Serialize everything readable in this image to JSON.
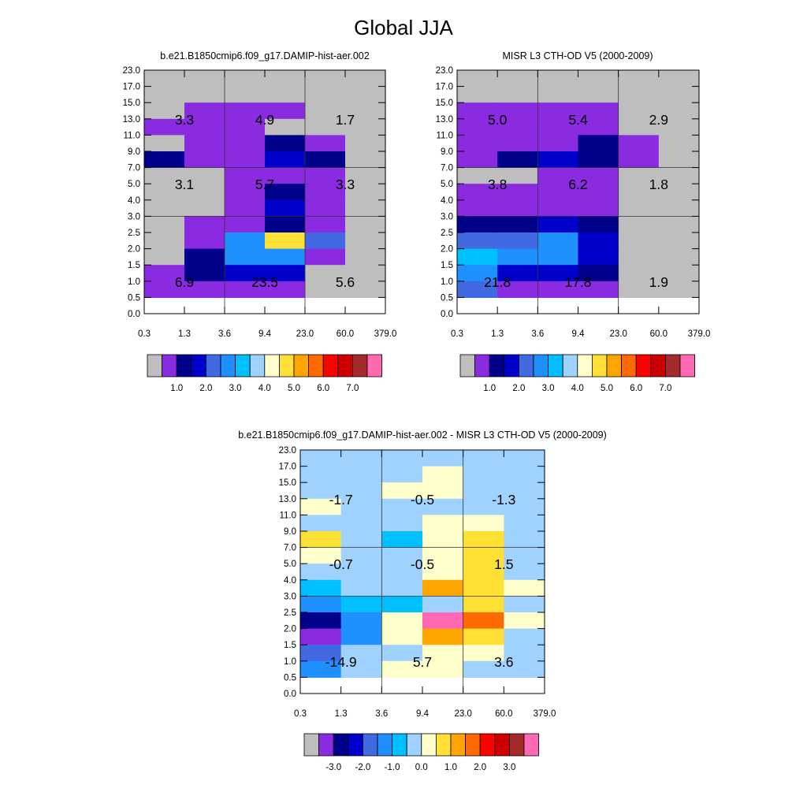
{
  "page": {
    "title": "Global JJA"
  },
  "colors": {
    "low": "#bebebe",
    "high": "#ff69b4",
    "palette": [
      "#8a2be2",
      "#00008b",
      "#0000cd",
      "#4169e1",
      "#1e90ff",
      "#00bfff",
      "#a0d2ff",
      "#ffffcc",
      "#ffe135",
      "#ffa500",
      "#ff6a00",
      "#ff0000",
      "#cc0000",
      "#a52a2a"
    ]
  },
  "chart_data": [
    {
      "type": "heatmap",
      "title": "b.e21.B1850cmip6.f09_g17.DAMIP-hist-aer.002",
      "x_ticks": [
        "0.3",
        "1.3",
        "3.6",
        "9.4",
        "23.0",
        "60.0",
        "379.0"
      ],
      "y_ticks": [
        "0.0",
        "0.5",
        "1.0",
        "1.5",
        "2.0",
        "2.5",
        "3.0",
        "4.0",
        "5.0",
        "7.0",
        "9.0",
        "11.0",
        "13.0",
        "15.0",
        "17.0",
        "23.0"
      ],
      "colorbar_labels": [
        "1.0",
        "2.0",
        "3.0",
        "4.0",
        "5.0",
        "6.0",
        "7.0"
      ],
      "levels": [
        0.5,
        1.0,
        1.5,
        2.0,
        2.5,
        3.0,
        3.5,
        4.0,
        4.5,
        5.0,
        5.5,
        6.0,
        6.5,
        7.0,
        7.5
      ],
      "grid": "values per cell, rows from top (15.0-23.0 km) to bottom (0.0-0.5 km), columns from 0.3-1.3 to 60.0-379.0",
      "values": [
        [
          0.3,
          0.3,
          0.3,
          0.3,
          0.3,
          0.3
        ],
        [
          0.3,
          0.3,
          0.3,
          0.3,
          0.3,
          0.3
        ],
        [
          0.3,
          0.7,
          0.7,
          0.7,
          0.3,
          0.3
        ],
        [
          0.7,
          0.7,
          0.7,
          0.3,
          0.3,
          0.3
        ],
        [
          0.3,
          0.7,
          0.7,
          1.3,
          0.7,
          0.3
        ],
        [
          1.3,
          0.7,
          0.7,
          1.7,
          1.3,
          0.3
        ],
        [
          0.3,
          0.3,
          0.7,
          0.7,
          0.7,
          0.3
        ],
        [
          0.3,
          0.3,
          0.7,
          1.3,
          0.7,
          0.3
        ],
        [
          0.3,
          0.3,
          0.7,
          1.7,
          0.7,
          0.3
        ],
        [
          0.3,
          0.7,
          0.7,
          1.3,
          0.7,
          0.3
        ],
        [
          0.3,
          0.7,
          2.7,
          4.7,
          2.2,
          0.3
        ],
        [
          0.3,
          1.3,
          2.7,
          2.7,
          0.7,
          0.3
        ],
        [
          0.7,
          1.3,
          1.7,
          1.7,
          0.3,
          0.3
        ],
        [
          0.7,
          0.7,
          0.7,
          0.7,
          0.3,
          0.3
        ]
      ],
      "annotations": [
        [
          "3.3",
          "4.9",
          "1.7"
        ],
        [
          "3.1",
          "5.7",
          "3.3"
        ],
        [
          "6.9",
          "23.5",
          "5.6"
        ]
      ]
    },
    {
      "type": "heatmap",
      "title": "MISR L3 CTH-OD V5 (2000-2009)",
      "x_ticks": [
        "0.3",
        "1.3",
        "3.6",
        "9.4",
        "23.0",
        "60.0",
        "379.0"
      ],
      "y_ticks": [
        "0.0",
        "0.5",
        "1.0",
        "1.5",
        "2.0",
        "2.5",
        "3.0",
        "4.0",
        "5.0",
        "7.0",
        "9.0",
        "11.0",
        "13.0",
        "15.0",
        "17.0",
        "23.0"
      ],
      "colorbar_labels": [
        "1.0",
        "2.0",
        "3.0",
        "4.0",
        "5.0",
        "6.0",
        "7.0"
      ],
      "levels": [
        0.5,
        1.0,
        1.5,
        2.0,
        2.5,
        3.0,
        3.5,
        4.0,
        4.5,
        5.0,
        5.5,
        6.0,
        6.5,
        7.0,
        7.5
      ],
      "values": [
        [
          0.3,
          0.3,
          0.3,
          0.3,
          0.3,
          0.3
        ],
        [
          0.3,
          0.3,
          0.3,
          0.3,
          0.3,
          0.3
        ],
        [
          0.7,
          0.7,
          0.7,
          0.7,
          0.3,
          0.3
        ],
        [
          0.7,
          0.7,
          0.7,
          0.7,
          0.3,
          0.3
        ],
        [
          0.7,
          0.7,
          0.7,
          1.3,
          0.7,
          0.3
        ],
        [
          0.7,
          1.3,
          1.7,
          1.3,
          0.7,
          0.3
        ],
        [
          0.3,
          0.3,
          0.7,
          0.7,
          0.3,
          0.3
        ],
        [
          0.7,
          0.7,
          0.7,
          0.7,
          0.3,
          0.3
        ],
        [
          0.7,
          0.7,
          0.7,
          0.7,
          0.3,
          0.3
        ],
        [
          1.3,
          1.3,
          1.7,
          1.3,
          0.3,
          0.3
        ],
        [
          2.2,
          2.2,
          2.7,
          1.7,
          0.3,
          0.3
        ],
        [
          3.2,
          2.7,
          2.7,
          1.7,
          0.3,
          0.3
        ],
        [
          2.7,
          1.7,
          1.7,
          1.3,
          0.3,
          0.3
        ],
        [
          2.2,
          0.7,
          0.7,
          0.7,
          0.3,
          0.3
        ]
      ],
      "annotations": [
        [
          "5.0",
          "5.4",
          "2.9"
        ],
        [
          "3.8",
          "6.2",
          "1.8"
        ],
        [
          "21.8",
          "17.8",
          "1.9"
        ]
      ]
    },
    {
      "type": "heatmap",
      "title": "b.e21.B1850cmip6.f09_g17.DAMIP-hist-aer.002 - MISR L3 CTH-OD V5 (2000-2009)",
      "x_ticks": [
        "0.3",
        "1.3",
        "3.6",
        "9.4",
        "23.0",
        "60.0",
        "379.0"
      ],
      "y_ticks": [
        "0.0",
        "0.5",
        "1.0",
        "1.5",
        "2.0",
        "2.5",
        "3.0",
        "4.0",
        "5.0",
        "7.0",
        "9.0",
        "11.0",
        "13.0",
        "15.0",
        "17.0",
        "23.0"
      ],
      "colorbar_labels": [
        "-3.0",
        "-2.0",
        "-1.0",
        "0.0",
        "1.0",
        "2.0",
        "3.0"
      ],
      "levels": [
        -3.5,
        -3.0,
        -2.5,
        -2.0,
        -1.5,
        -1.0,
        -0.5,
        0.0,
        0.5,
        1.0,
        1.5,
        2.0,
        2.5,
        3.0,
        3.5
      ],
      "values": [
        [
          -0.2,
          -0.2,
          -0.2,
          -0.2,
          -0.2,
          -0.2
        ],
        [
          -0.2,
          -0.2,
          -0.2,
          0.2,
          -0.2,
          -0.2
        ],
        [
          -0.2,
          -0.2,
          0.2,
          0.2,
          -0.2,
          -0.2
        ],
        [
          0.2,
          -0.2,
          -0.2,
          -0.2,
          -0.2,
          -0.2
        ],
        [
          -0.2,
          -0.2,
          -0.2,
          0.2,
          0.2,
          -0.2
        ],
        [
          0.7,
          -0.2,
          -0.7,
          0.2,
          0.7,
          -0.2
        ],
        [
          0.2,
          -0.2,
          -0.2,
          0.2,
          0.7,
          -0.2
        ],
        [
          -0.2,
          -0.2,
          -0.2,
          0.2,
          0.7,
          -0.2
        ],
        [
          -0.7,
          -0.2,
          -0.2,
          1.2,
          0.7,
          0.2
        ],
        [
          -1.2,
          -0.7,
          -0.7,
          -0.2,
          0.7,
          -0.2
        ],
        [
          -2.7,
          -1.2,
          0.2,
          3.7,
          1.7,
          0.2
        ],
        [
          -3.2,
          -1.2,
          0.2,
          1.2,
          0.7,
          -0.2
        ],
        [
          -1.7,
          -0.2,
          -0.2,
          0.2,
          0.2,
          -0.2
        ],
        [
          -1.2,
          -0.2,
          0.2,
          0.2,
          -0.2,
          -0.2
        ]
      ],
      "annotations": [
        [
          "-1.7",
          "-0.5",
          "-1.3"
        ],
        [
          "-0.7",
          "-0.5",
          "1.5"
        ],
        [
          "-14.9",
          "5.7",
          "3.6"
        ]
      ]
    }
  ]
}
